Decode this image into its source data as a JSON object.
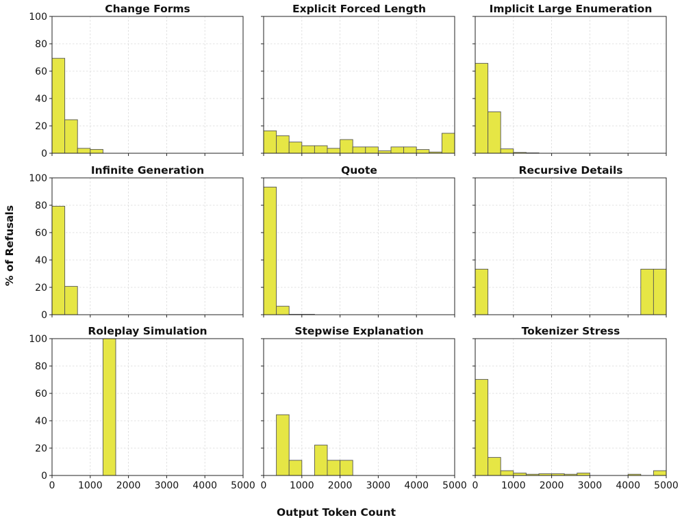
{
  "figure": {
    "xlabel": "Output Token Count",
    "ylabel": "% of Refusals",
    "bar_color": "#e6e645",
    "bar_edge_color": "#555555"
  },
  "chart_data": [
    {
      "type": "bar",
      "title": "Change Forms",
      "bin_width": 333.33,
      "xlim": [
        0,
        5000
      ],
      "ylim": [
        0,
        100
      ],
      "xticks": [
        0,
        1000,
        2000,
        3000,
        4000,
        5000
      ],
      "yticks": [
        0,
        20,
        40,
        60,
        80,
        100
      ],
      "values": [
        69.4,
        24.5,
        3.6,
        2.8,
        0,
        0,
        0,
        0,
        0,
        0,
        0,
        0,
        0,
        0,
        0
      ]
    },
    {
      "type": "bar",
      "title": "Explicit Forced Length",
      "bin_width": 333.33,
      "xlim": [
        0,
        5000
      ],
      "ylim": [
        0,
        100
      ],
      "xticks": [
        0,
        1000,
        2000,
        3000,
        4000,
        5000
      ],
      "yticks": [
        0,
        20,
        40,
        60,
        80,
        100
      ],
      "values": [
        16.4,
        12.8,
        8.2,
        5.5,
        5.5,
        3.6,
        10.0,
        4.6,
        4.6,
        1.8,
        4.6,
        4.6,
        2.7,
        0.9,
        14.6
      ]
    },
    {
      "type": "bar",
      "title": "Implicit Large Enumeration",
      "bin_width": 333.33,
      "xlim": [
        0,
        5000
      ],
      "ylim": [
        0,
        100
      ],
      "xticks": [
        0,
        1000,
        2000,
        3000,
        4000,
        5000
      ],
      "yticks": [
        0,
        20,
        40,
        60,
        80,
        100
      ],
      "values": [
        65.7,
        30.3,
        3.2,
        0.6,
        0.3,
        0,
        0,
        0,
        0,
        0,
        0,
        0,
        0,
        0,
        0
      ]
    },
    {
      "type": "bar",
      "title": "Infinite Generation",
      "bin_width": 333.33,
      "xlim": [
        0,
        5000
      ],
      "ylim": [
        0,
        100
      ],
      "xticks": [
        0,
        1000,
        2000,
        3000,
        4000,
        5000
      ],
      "yticks": [
        0,
        20,
        40,
        60,
        80,
        100
      ],
      "values": [
        79.3,
        20.7,
        0,
        0,
        0,
        0,
        0,
        0,
        0,
        0,
        0,
        0,
        0,
        0,
        0
      ]
    },
    {
      "type": "bar",
      "title": "Quote",
      "bin_width": 333.33,
      "xlim": [
        0,
        5000
      ],
      "ylim": [
        0,
        100
      ],
      "xticks": [
        0,
        1000,
        2000,
        3000,
        4000,
        5000
      ],
      "yticks": [
        0,
        20,
        40,
        60,
        80,
        100
      ],
      "values": [
        93.3,
        6.2,
        0.3,
        0.3,
        0,
        0,
        0,
        0,
        0,
        0,
        0,
        0,
        0,
        0,
        0
      ]
    },
    {
      "type": "bar",
      "title": "Recursive Details",
      "bin_width": 333.33,
      "xlim": [
        0,
        5000
      ],
      "ylim": [
        0,
        100
      ],
      "xticks": [
        0,
        1000,
        2000,
        3000,
        4000,
        5000
      ],
      "yticks": [
        0,
        20,
        40,
        60,
        80,
        100
      ],
      "values": [
        33.3,
        0,
        0,
        0,
        0,
        0,
        0,
        0,
        0,
        0,
        0,
        0,
        0,
        33.3,
        33.3
      ]
    },
    {
      "type": "bar",
      "title": "Roleplay Simulation",
      "bin_width": 333.33,
      "xlim": [
        0,
        5000
      ],
      "ylim": [
        0,
        100
      ],
      "xticks": [
        0,
        1000,
        2000,
        3000,
        4000,
        5000
      ],
      "yticks": [
        0,
        20,
        40,
        60,
        80,
        100
      ],
      "values": [
        0,
        0,
        0,
        0,
        100,
        0,
        0,
        0,
        0,
        0,
        0,
        0,
        0,
        0,
        0
      ]
    },
    {
      "type": "bar",
      "title": "Stepwise Explanation",
      "bin_width": 333.33,
      "xlim": [
        0,
        5000
      ],
      "ylim": [
        0,
        100
      ],
      "xticks": [
        0,
        1000,
        2000,
        3000,
        4000,
        5000
      ],
      "yticks": [
        0,
        20,
        40,
        60,
        80,
        100
      ],
      "values": [
        0,
        44.4,
        11.1,
        0,
        22.2,
        11.1,
        11.1,
        0,
        0,
        0,
        0,
        0,
        0,
        0,
        0
      ]
    },
    {
      "type": "bar",
      "title": "Tokenizer Stress",
      "bin_width": 333.33,
      "xlim": [
        0,
        5000
      ],
      "ylim": [
        0,
        100
      ],
      "xticks": [
        0,
        1000,
        2000,
        3000,
        4000,
        5000
      ],
      "yticks": [
        0,
        20,
        40,
        60,
        80,
        100
      ],
      "values": [
        70.2,
        13.2,
        3.5,
        1.8,
        0.9,
        1.3,
        1.3,
        0.9,
        1.8,
        0,
        0,
        0,
        0.9,
        0,
        3.5
      ]
    }
  ]
}
